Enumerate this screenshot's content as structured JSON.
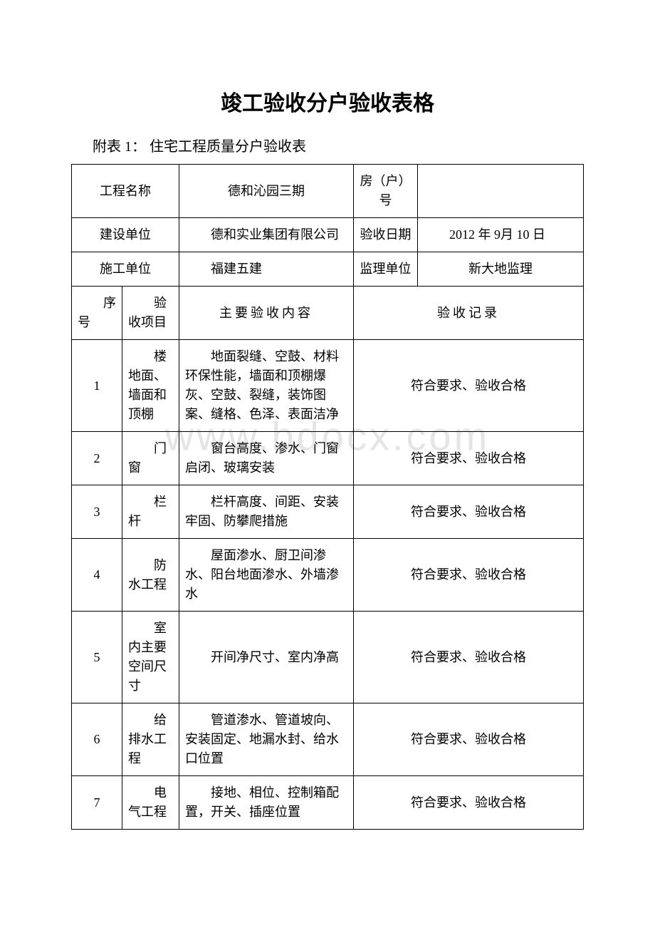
{
  "watermark": "www.bdocx.com",
  "title": "竣工验收分户验收表格",
  "subtitle": "附表 1：  住宅工程质量分户验收表",
  "header": {
    "project_name_label": "工程名称",
    "project_name_value": "德和沁园三期",
    "room_label": "房（户）号",
    "room_value": "",
    "builder_label": "建设单位",
    "builder_value": "德和实业集团有限公司",
    "accept_date_label": "验收日期",
    "accept_date_value": "2012 年 9月 10 日",
    "constructor_label": "施工单位",
    "constructor_value": "福建五建",
    "supervisor_label": "监理单位",
    "supervisor_value": "新大地监理"
  },
  "table_header": {
    "seq": "序号",
    "item": "验收项目",
    "content": "主要验收内容",
    "record": "验收记录"
  },
  "rows": [
    {
      "seq": "1",
      "item": "楼地面、墙面和顶棚",
      "content": "地面裂缝、空鼓、材料环保性能，墙面和顶棚爆灰、空鼓、裂缝，装饰图案、缝格、色泽、表面洁净",
      "record": "符合要求、验收合格"
    },
    {
      "seq": "2",
      "item": "门窗",
      "content": "窗台高度、渗水、门窗启闭、玻璃安装",
      "record": "符合要求、验收合格"
    },
    {
      "seq": "3",
      "item": "栏杆",
      "content": "栏杆高度、间距、安装牢固、防攀爬措施",
      "record": "符合要求、验收合格"
    },
    {
      "seq": "4",
      "item": "防水工程",
      "content": "屋面渗水、厨卫间渗水、阳台地面渗水、外墙渗水",
      "record": "符合要求、验收合格"
    },
    {
      "seq": "5",
      "item": "室内主要　空间尺寸",
      "content": "开间净尺寸、室内净高",
      "record": "符合要求、验收合格"
    },
    {
      "seq": "6",
      "item": "给排水工程",
      "content": "管道渗水、管道坡向、安装固定、地漏水封、给水口位置",
      "record": "符合要求、验收合格"
    },
    {
      "seq": "7",
      "item": "电气工程",
      "content": "接地、相位、控制箱配置，开关、插座位置",
      "record": "符合要求、验收合格"
    }
  ]
}
